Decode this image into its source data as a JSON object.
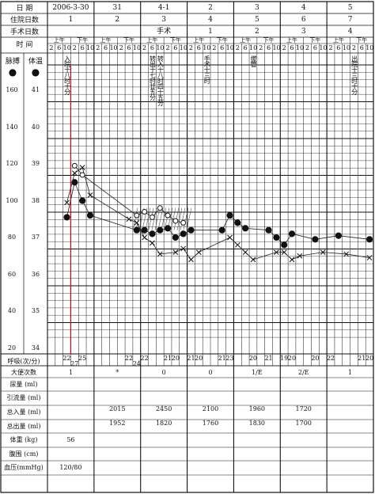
{
  "header": {
    "date_label": "日 期",
    "date_values": [
      "2006-3-30",
      "31",
      "4-1",
      "2",
      "3",
      "4",
      "5"
    ],
    "hospital_day_label": "住院日数",
    "hospital_day_values": [
      "1",
      "2",
      "3",
      "4",
      "5",
      "6",
      "7"
    ],
    "surgery_day_label": "手术日数",
    "surgery_day_values": [
      "",
      "",
      "手术",
      "1",
      "2",
      "3",
      "4"
    ],
    "time_label": "时 间",
    "am_label": "上午",
    "pm_label": "下午",
    "hours": [
      "2",
      "6",
      "10",
      "2",
      "6",
      "10"
    ]
  },
  "axes": {
    "pulse_label": "脉搏",
    "temp_label": "体温",
    "pulse_ticks": [
      "160",
      "140",
      "120",
      "100",
      "80",
      "60",
      "40",
      "20"
    ],
    "temp_ticks": [
      "41",
      "40",
      "39",
      "38",
      "37",
      "36",
      "35",
      "34"
    ]
  },
  "annotations": {
    "admit": "入院十八时十分",
    "transfer": "转出十七时廿五分",
    "transfer_in": "转入十八时四十五分",
    "surgery_time": "手术十三时",
    "drain": "拔管",
    "discharge": "出院十三时十分"
  },
  "chart_data": {
    "type": "line",
    "x_unit": "4-hour slot index (0 = 2006-3-30 02:00)",
    "series": [
      {
        "marker": "filled-circle",
        "points": [
          [
            2,
            37.55
          ],
          [
            3,
            38.5
          ],
          [
            4,
            38
          ],
          [
            5,
            37.6
          ],
          [
            11,
            37.2
          ],
          [
            12,
            37.2
          ],
          [
            13,
            37.1
          ],
          [
            14,
            37.2
          ],
          [
            15,
            37.25
          ],
          [
            16,
            37
          ],
          [
            17,
            37.1
          ],
          [
            18,
            37.2
          ],
          [
            22,
            37.2
          ],
          [
            23,
            37.6
          ],
          [
            24,
            37.4
          ],
          [
            25,
            37.25
          ],
          [
            28,
            37.2
          ],
          [
            29,
            37
          ],
          [
            30,
            36.8
          ],
          [
            31,
            37.1
          ],
          [
            34,
            36.95
          ],
          [
            37,
            37.05
          ],
          [
            41,
            36.95
          ]
        ]
      },
      {
        "marker": "cross",
        "points": [
          [
            2,
            37.95
          ],
          [
            3,
            38.75
          ],
          [
            4,
            38.9
          ],
          [
            5,
            38.15
          ],
          [
            10,
            37.5
          ],
          [
            11,
            37.4
          ],
          [
            12,
            37
          ],
          [
            13,
            36.85
          ],
          [
            14,
            36.55
          ],
          [
            16,
            36.6
          ],
          [
            17,
            36.7
          ],
          [
            18,
            36.4
          ],
          [
            19,
            36.6
          ],
          [
            23,
            37
          ],
          [
            24,
            36.8
          ],
          [
            25,
            36.6
          ],
          [
            26,
            36.4
          ],
          [
            29,
            36.6
          ],
          [
            30,
            36.6
          ],
          [
            31,
            36.4
          ],
          [
            32,
            36.5
          ],
          [
            35,
            36.6
          ],
          [
            38,
            36.55
          ],
          [
            41,
            36.45
          ]
        ]
      },
      {
        "marker": "open-circle",
        "points": [
          [
            3,
            38.95
          ],
          [
            4,
            38.7
          ],
          [
            11,
            37.6
          ],
          [
            12,
            37.7
          ],
          [
            13,
            37.55
          ],
          [
            14,
            37.8
          ],
          [
            15,
            37.6
          ],
          [
            16,
            37.45
          ],
          [
            17,
            37.4
          ]
        ]
      }
    ],
    "ylim": [
      34,
      41.5
    ]
  },
  "respiration": {
    "label": "呼吸(次/分)",
    "values": [
      [
        "22",
        "",
        ""
      ],
      [
        "",
        "27",
        ""
      ],
      [
        "25",
        "",
        ""
      ],
      [
        "22",
        "",
        ""
      ],
      [
        "",
        "24",
        ""
      ],
      [
        "22",
        "",
        ""
      ],
      [
        "21",
        "",
        ""
      ],
      [
        "20",
        "",
        ""
      ],
      [
        "21",
        "",
        ""
      ],
      [
        "20",
        "",
        ""
      ],
      [
        "21",
        "",
        ""
      ],
      [
        "23",
        "",
        ""
      ],
      [
        "20",
        "",
        ""
      ],
      [
        "21",
        "",
        ""
      ],
      [
        "19",
        "",
        ""
      ],
      [
        "20",
        "",
        ""
      ],
      [
        "20",
        "",
        ""
      ],
      [
        "22",
        "",
        ""
      ],
      [
        "21",
        "",
        ""
      ],
      [
        "20",
        "",
        ""
      ]
    ]
  },
  "bottom": {
    "rows": [
      {
        "label": "大便次数",
        "values": [
          "1",
          "*",
          "0",
          "0",
          "1/E",
          "2/E",
          "1"
        ]
      },
      {
        "label": "尿量 (ml)",
        "values": [
          "",
          "",
          "",
          "",
          "",
          "",
          ""
        ]
      },
      {
        "label": "引流量 (ml)",
        "values": [
          "",
          "",
          "",
          "",
          "",
          "",
          ""
        ]
      },
      {
        "label": "总入量 (ml)",
        "values": [
          "",
          "2015",
          "2450",
          "2100",
          "1960",
          "1720",
          ""
        ]
      },
      {
        "label": "总出量 (ml)",
        "values": [
          "",
          "1952",
          "1820",
          "1760",
          "1830",
          "1700",
          ""
        ]
      },
      {
        "label": "体重 (kg)",
        "values": [
          "56",
          "",
          "",
          "",
          "",
          "",
          ""
        ]
      },
      {
        "label": "腹围 (cm)",
        "values": [
          "",
          "",
          "",
          "",
          "",
          "",
          ""
        ]
      },
      {
        "label": "血压(mmHg)",
        "values": [
          "120/80",
          "",
          "",
          "",
          "",
          "",
          ""
        ]
      }
    ]
  }
}
